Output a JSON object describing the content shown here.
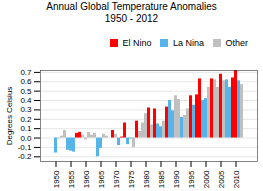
{
  "chart_data": {
    "type": "bar",
    "title": "Annual Global Temperature Anomalies\n1950 - 2012",
    "ylabel": "Degrees Celsius",
    "categories": [
      "1950",
      null,
      null,
      null,
      null,
      "1955",
      null,
      null,
      null,
      null,
      "1960",
      null,
      null,
      null,
      null,
      "1965",
      null,
      null,
      null,
      null,
      "1970",
      null,
      null,
      null,
      null,
      "1975",
      null,
      null,
      null,
      null,
      "1980",
      null,
      null,
      null,
      null,
      "1985",
      null,
      null,
      null,
      null,
      "1990",
      null,
      null,
      null,
      null,
      "1995",
      null,
      null,
      null,
      null,
      "2000",
      null,
      null,
      null,
      null,
      "2005",
      null,
      null,
      null,
      null,
      "2010",
      null,
      null
    ],
    "series": [
      {
        "name": "El Nino",
        "color": "#FF0000",
        "values": [
          null,
          null,
          null,
          null,
          null,
          null,
          null,
          0.05,
          0.06,
          null,
          null,
          null,
          null,
          null,
          null,
          null,
          null,
          null,
          null,
          0.08,
          null,
          null,
          0.01,
          0.16,
          null,
          null,
          null,
          0.18,
          null,
          null,
          null,
          0.32,
          null,
          0.31,
          null,
          null,
          null,
          0.33,
          null,
          null,
          null,
          null,
          null,
          null,
          null,
          0.45,
          null,
          0.46,
          0.63,
          null,
          null,
          null,
          0.63,
          null,
          null,
          0.68,
          null,
          null,
          null,
          0.64,
          0.72,
          null,
          null
        ]
      },
      {
        "name": "La Nina",
        "color": "#56B4E9",
        "values": [
          -0.16,
          null,
          null,
          null,
          -0.13,
          -0.14,
          -0.15,
          null,
          null,
          null,
          null,
          null,
          null,
          null,
          -0.2,
          -0.11,
          null,
          null,
          0.0,
          null,
          null,
          -0.08,
          null,
          null,
          -0.07,
          -0.01,
          null,
          null,
          null,
          null,
          null,
          null,
          null,
          null,
          0.15,
          0.12,
          null,
          null,
          0.4,
          0.29,
          null,
          null,
          0.22,
          null,
          null,
          null,
          0.35,
          null,
          null,
          0.4,
          0.42,
          null,
          null,
          null,
          null,
          null,
          null,
          0.62,
          0.54,
          null,
          null,
          0.61,
          null
        ]
      },
      {
        "name": "Other",
        "color": "#C0C0C0",
        "values": [
          null,
          -0.01,
          0.02,
          0.08,
          null,
          null,
          null,
          null,
          null,
          0.03,
          -0.02,
          0.06,
          0.03,
          0.05,
          null,
          null,
          0.04,
          0.02,
          null,
          null,
          0.04,
          null,
          null,
          null,
          null,
          null,
          -0.1,
          null,
          0.07,
          0.16,
          0.26,
          null,
          0.14,
          null,
          null,
          null,
          0.18,
          null,
          null,
          null,
          0.45,
          0.41,
          null,
          0.24,
          0.31,
          null,
          null,
          null,
          null,
          null,
          null,
          0.54,
          null,
          0.62,
          0.54,
          null,
          0.61,
          null,
          null,
          null,
          null,
          null,
          0.57
        ]
      }
    ],
    "ylim": [
      -0.25,
      0.72
    ],
    "yticks": [
      -0.2,
      -0.1,
      {
        "value": 0.0,
        "label": "0.0"
      },
      0.1,
      0.2,
      0.3,
      0.4,
      0.5,
      0.6,
      0.7
    ],
    "grid": true,
    "legend": "upper right"
  }
}
